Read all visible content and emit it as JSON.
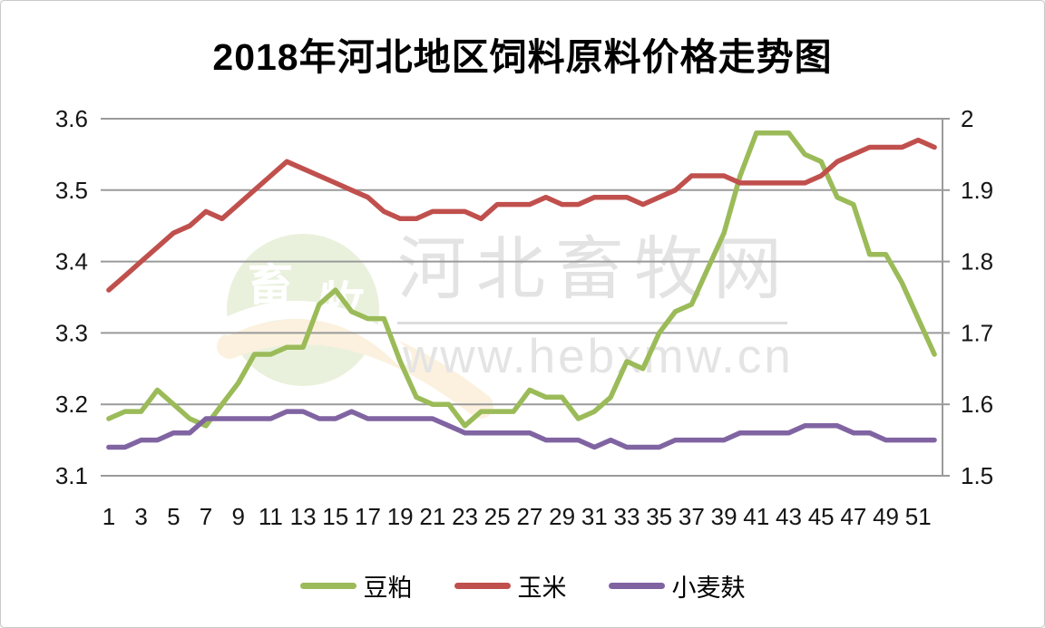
{
  "chart_data": {
    "type": "line",
    "title": "2018年河北地区饲料原料价格走势图",
    "x_label_implied": "周(week) 1-52",
    "x_tick_labels": [
      "1",
      "3",
      "5",
      "7",
      "9",
      "11",
      "13",
      "15",
      "17",
      "19",
      "21",
      "23",
      "25",
      "27",
      "29",
      "31",
      "33",
      "35",
      "37",
      "39",
      "41",
      "43",
      "45",
      "47",
      "49",
      "51"
    ],
    "x_count": 52,
    "grid": true,
    "legend_position": "bottom",
    "gridline_color": "#9a9a9a",
    "left_axis": {
      "min": 3.1,
      "max": 3.6,
      "tick_values": [
        3.6,
        3.5,
        3.4,
        3.3,
        3.2,
        3.1
      ],
      "tick_labels": [
        "3.6",
        "3.5",
        "3.4",
        "3.3",
        "3.2",
        "3.1"
      ]
    },
    "right_axis": {
      "min": 1.5,
      "max": 2.0,
      "tick_values": [
        2.0,
        1.9,
        1.8,
        1.7,
        1.6,
        1.5
      ],
      "tick_labels": [
        "2",
        "1.9",
        "1.8",
        "1.7",
        "1.6",
        "1.5"
      ]
    },
    "series": [
      {
        "id": "soybean-meal",
        "name": "豆粕",
        "axis": "left",
        "color": "#9bbb59",
        "values": [
          3.18,
          3.19,
          3.19,
          3.22,
          3.2,
          3.18,
          3.17,
          3.2,
          3.23,
          3.27,
          3.27,
          3.28,
          3.28,
          3.34,
          3.36,
          3.33,
          3.32,
          3.32,
          3.26,
          3.21,
          3.2,
          3.2,
          3.17,
          3.19,
          3.19,
          3.19,
          3.22,
          3.21,
          3.21,
          3.18,
          3.19,
          3.21,
          3.26,
          3.25,
          3.3,
          3.33,
          3.34,
          3.39,
          3.44,
          3.52,
          3.58,
          3.58,
          3.58,
          3.55,
          3.54,
          3.49,
          3.48,
          3.41,
          3.41,
          3.37,
          3.32,
          3.27
        ]
      },
      {
        "id": "corn",
        "name": "玉米",
        "axis": "right",
        "color": "#c0504d",
        "values": [
          1.76,
          1.78,
          1.8,
          1.82,
          1.84,
          1.85,
          1.87,
          1.86,
          1.88,
          1.9,
          1.92,
          1.94,
          1.93,
          1.92,
          1.91,
          1.9,
          1.89,
          1.87,
          1.86,
          1.86,
          1.87,
          1.87,
          1.87,
          1.86,
          1.88,
          1.88,
          1.88,
          1.89,
          1.88,
          1.88,
          1.89,
          1.89,
          1.89,
          1.88,
          1.89,
          1.9,
          1.92,
          1.92,
          1.92,
          1.91,
          1.91,
          1.91,
          1.91,
          1.91,
          1.92,
          1.94,
          1.95,
          1.96,
          1.96,
          1.96,
          1.97,
          1.96
        ]
      },
      {
        "id": "wheat-bran",
        "name": "小麦麸",
        "axis": "left",
        "color": "#8064a2",
        "values": [
          3.14,
          3.14,
          3.15,
          3.15,
          3.16,
          3.16,
          3.18,
          3.18,
          3.18,
          3.18,
          3.18,
          3.19,
          3.19,
          3.18,
          3.18,
          3.19,
          3.18,
          3.18,
          3.18,
          3.18,
          3.18,
          3.17,
          3.16,
          3.16,
          3.16,
          3.16,
          3.16,
          3.15,
          3.15,
          3.15,
          3.14,
          3.15,
          3.14,
          3.14,
          3.14,
          3.15,
          3.15,
          3.15,
          3.15,
          3.16,
          3.16,
          3.16,
          3.16,
          3.17,
          3.17,
          3.17,
          3.16,
          3.16,
          3.15,
          3.15,
          3.15,
          3.15
        ]
      }
    ]
  },
  "watermark": {
    "logo_chars": [
      "畜",
      "牧"
    ],
    "site_name": "河北畜牧网",
    "site_url": "www.hebxmw.cn"
  }
}
